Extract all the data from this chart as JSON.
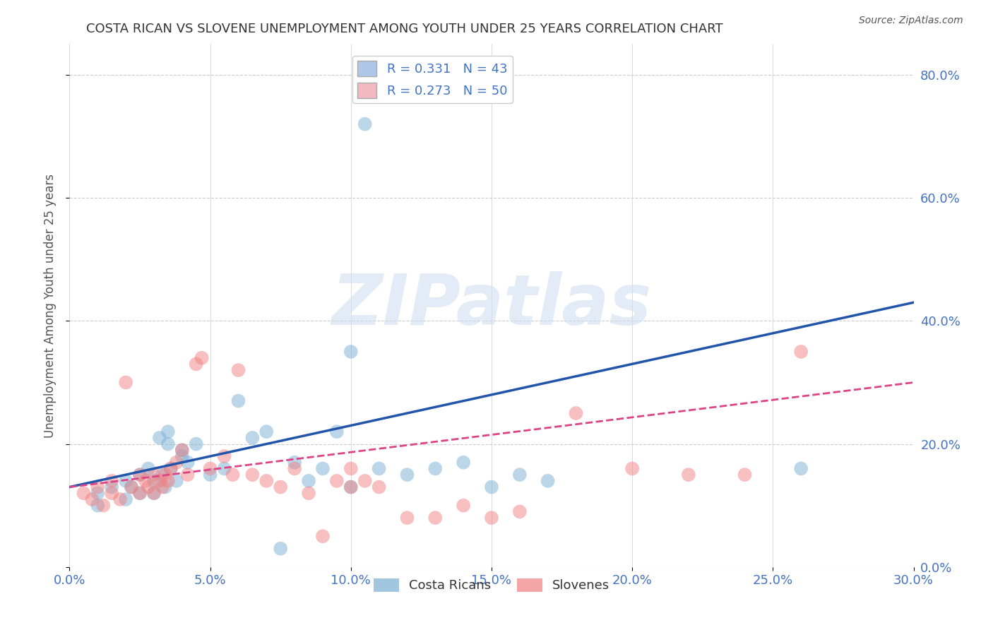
{
  "title": "COSTA RICAN VS SLOVENE UNEMPLOYMENT AMONG YOUTH UNDER 25 YEARS CORRELATION CHART",
  "source": "Source: ZipAtlas.com",
  "ylabel": "Unemployment Among Youth under 25 years",
  "xlabel_ticks": [
    "0.0%",
    "5.0%",
    "10.0%",
    "15.0%",
    "20.0%",
    "25.0%",
    "30.0%"
  ],
  "ylabel_ticks": [
    "0.0%",
    "20.0%",
    "40.0%",
    "60.0%",
    "80.0%"
  ],
  "xlim": [
    0.0,
    0.3
  ],
  "ylim": [
    0.0,
    0.85
  ],
  "right_ytick_color": "#4472c4",
  "title_color": "#333333",
  "watermark": "ZIPatlas",
  "legend_label1": "R = 0.331   N = 43",
  "legend_label2": "R = 0.273   N = 50",
  "legend_color1": "#aec6e8",
  "legend_color2": "#f4b8c1",
  "scatter_blue_x": [
    0.01,
    0.01,
    0.015,
    0.02,
    0.02,
    0.022,
    0.025,
    0.025,
    0.028,
    0.03,
    0.03,
    0.032,
    0.033,
    0.034,
    0.035,
    0.035,
    0.036,
    0.038,
    0.04,
    0.04,
    0.042,
    0.045,
    0.05,
    0.055,
    0.06,
    0.065,
    0.07,
    0.075,
    0.08,
    0.085,
    0.09,
    0.095,
    0.1,
    0.1,
    0.11,
    0.12,
    0.13,
    0.14,
    0.15,
    0.16,
    0.17,
    0.26,
    0.105
  ],
  "scatter_blue_y": [
    0.12,
    0.1,
    0.13,
    0.14,
    0.11,
    0.13,
    0.12,
    0.15,
    0.16,
    0.14,
    0.12,
    0.21,
    0.15,
    0.13,
    0.2,
    0.22,
    0.16,
    0.14,
    0.18,
    0.19,
    0.17,
    0.2,
    0.15,
    0.16,
    0.27,
    0.21,
    0.22,
    0.03,
    0.17,
    0.14,
    0.16,
    0.22,
    0.35,
    0.13,
    0.16,
    0.15,
    0.16,
    0.17,
    0.13,
    0.15,
    0.14,
    0.16,
    0.72
  ],
  "scatter_pink_x": [
    0.005,
    0.008,
    0.01,
    0.012,
    0.015,
    0.015,
    0.018,
    0.02,
    0.022,
    0.025,
    0.025,
    0.027,
    0.028,
    0.03,
    0.03,
    0.032,
    0.033,
    0.034,
    0.035,
    0.036,
    0.038,
    0.04,
    0.042,
    0.045,
    0.047,
    0.05,
    0.055,
    0.058,
    0.06,
    0.065,
    0.07,
    0.075,
    0.08,
    0.085,
    0.09,
    0.095,
    0.1,
    0.105,
    0.11,
    0.12,
    0.13,
    0.14,
    0.15,
    0.16,
    0.18,
    0.2,
    0.22,
    0.24,
    0.26,
    0.1
  ],
  "scatter_pink_y": [
    0.12,
    0.11,
    0.13,
    0.1,
    0.12,
    0.14,
    0.11,
    0.3,
    0.13,
    0.15,
    0.12,
    0.14,
    0.13,
    0.15,
    0.12,
    0.14,
    0.13,
    0.15,
    0.14,
    0.16,
    0.17,
    0.19,
    0.15,
    0.33,
    0.34,
    0.16,
    0.18,
    0.15,
    0.32,
    0.15,
    0.14,
    0.13,
    0.16,
    0.12,
    0.05,
    0.14,
    0.16,
    0.14,
    0.13,
    0.08,
    0.08,
    0.1,
    0.08,
    0.09,
    0.25,
    0.16,
    0.15,
    0.15,
    0.35,
    0.13
  ],
  "blue_line_x": [
    0.0,
    0.3
  ],
  "blue_line_y": [
    0.13,
    0.43
  ],
  "pink_line_x": [
    0.0,
    0.3
  ],
  "pink_line_y": [
    0.13,
    0.3
  ],
  "bg_color": "#ffffff",
  "grid_color": "#cccccc",
  "scatter_blue_color": "#7aafd4",
  "scatter_pink_color": "#f08080",
  "line_blue_color": "#2255aa",
  "line_pink_color": "#dd4488",
  "bottom_legend_blue": "Costa Ricans",
  "bottom_legend_pink": "Slovenes"
}
